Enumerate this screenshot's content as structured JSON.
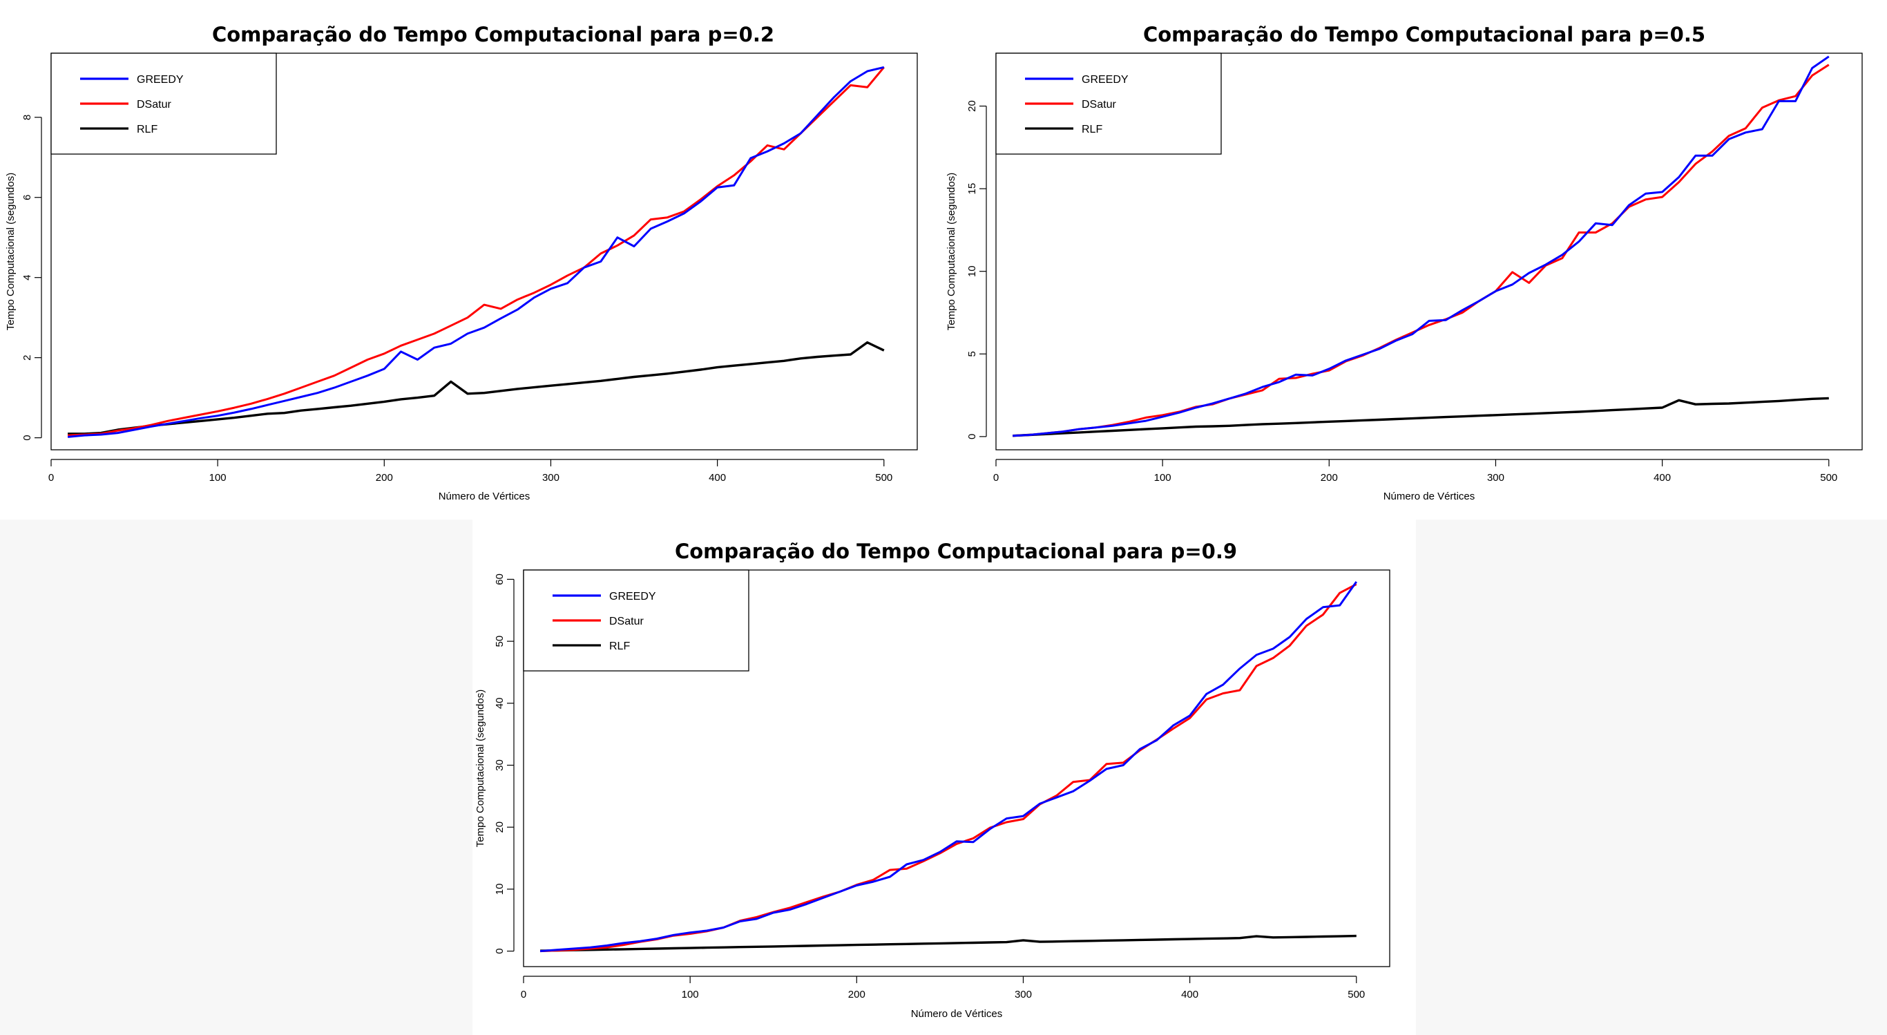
{
  "chart_data": [
    {
      "type": "line",
      "title": "Comparação do Tempo Computacional para p=0.2",
      "xlabel": "Número de Vértices",
      "ylabel": "Tempo Computacional (segundos)",
      "xlim": [
        0,
        520
      ],
      "ylim": [
        -0.3,
        9.6
      ],
      "xticks": [
        0,
        100,
        200,
        300,
        400,
        500
      ],
      "yticks": [
        0,
        2,
        4,
        6,
        8
      ],
      "legend_position": "top-left",
      "x": [
        10,
        20,
        30,
        40,
        50,
        60,
        70,
        80,
        90,
        100,
        110,
        120,
        130,
        140,
        150,
        160,
        170,
        180,
        190,
        200,
        210,
        220,
        230,
        240,
        250,
        260,
        270,
        280,
        290,
        300,
        310,
        320,
        330,
        340,
        350,
        360,
        370,
        380,
        390,
        400,
        410,
        420,
        430,
        440,
        450,
        460,
        470,
        480,
        490,
        500
      ],
      "series": [
        {
          "name": "GREEDY",
          "color": "#0000ff",
          "values": [
            0.02,
            0.06,
            0.08,
            0.12,
            0.2,
            0.28,
            0.35,
            0.42,
            0.49,
            0.55,
            0.63,
            0.72,
            0.82,
            0.92,
            1.02,
            1.12,
            1.25,
            1.4,
            1.55,
            1.72,
            2.15,
            1.95,
            2.25,
            2.35,
            2.6,
            2.75,
            2.98,
            3.2,
            3.5,
            3.72,
            3.86,
            4.25,
            4.4,
            5.0,
            4.78,
            5.22,
            5.4,
            5.6,
            5.9,
            6.25,
            6.3,
            6.98,
            7.15,
            7.35,
            7.6,
            8.05,
            8.5,
            8.9,
            9.15,
            9.25
          ]
        },
        {
          "name": "DSatur",
          "color": "#ff0000",
          "values": [
            0.06,
            0.08,
            0.1,
            0.18,
            0.24,
            0.32,
            0.42,
            0.5,
            0.58,
            0.66,
            0.75,
            0.85,
            0.97,
            1.1,
            1.25,
            1.4,
            1.55,
            1.75,
            1.95,
            2.1,
            2.3,
            2.45,
            2.6,
            2.8,
            3.0,
            3.32,
            3.22,
            3.45,
            3.62,
            3.82,
            4.05,
            4.25,
            4.6,
            4.8,
            5.05,
            5.45,
            5.5,
            5.65,
            5.95,
            6.28,
            6.55,
            6.9,
            7.3,
            7.2,
            7.6,
            8.0,
            8.4,
            8.8,
            8.75,
            9.25
          ]
        },
        {
          "name": "RLF",
          "color": "#000000",
          "values": [
            0.1,
            0.1,
            0.12,
            0.2,
            0.25,
            0.3,
            0.34,
            0.38,
            0.42,
            0.46,
            0.5,
            0.55,
            0.6,
            0.62,
            0.68,
            0.72,
            0.76,
            0.8,
            0.85,
            0.9,
            0.96,
            1.0,
            1.05,
            1.4,
            1.1,
            1.12,
            1.17,
            1.22,
            1.26,
            1.3,
            1.34,
            1.38,
            1.42,
            1.47,
            1.52,
            1.56,
            1.6,
            1.65,
            1.7,
            1.76,
            1.8,
            1.84,
            1.88,
            1.92,
            1.98,
            2.02,
            2.05,
            2.08,
            2.38,
            2.18
          ]
        }
      ]
    },
    {
      "type": "line",
      "title": "Comparação do Tempo Computacional para p=0.5",
      "xlabel": "Número de Vértices",
      "ylabel": "Tempo Computacional (segundos)",
      "xlim": [
        0,
        520
      ],
      "ylim": [
        -0.8,
        23.2
      ],
      "xticks": [
        0,
        100,
        200,
        300,
        400,
        500
      ],
      "yticks": [
        0,
        5,
        10,
        15,
        20
      ],
      "legend_position": "top-left",
      "x": [
        10,
        20,
        30,
        40,
        50,
        60,
        70,
        80,
        90,
        100,
        110,
        120,
        130,
        140,
        150,
        160,
        170,
        180,
        190,
        200,
        210,
        220,
        230,
        240,
        250,
        260,
        270,
        280,
        290,
        300,
        310,
        320,
        330,
        340,
        350,
        360,
        370,
        380,
        390,
        400,
        410,
        420,
        430,
        440,
        450,
        460,
        470,
        480,
        490,
        500
      ],
      "series": [
        {
          "name": "GREEDY",
          "color": "#0000ff",
          "values": [
            0.05,
            0.1,
            0.2,
            0.3,
            0.45,
            0.55,
            0.65,
            0.8,
            0.95,
            1.2,
            1.45,
            1.75,
            2.0,
            2.3,
            2.6,
            3.0,
            3.3,
            3.75,
            3.7,
            4.1,
            4.6,
            4.95,
            5.3,
            5.8,
            6.2,
            7.0,
            7.05,
            7.65,
            8.2,
            8.8,
            9.2,
            9.9,
            10.4,
            11.0,
            11.8,
            12.9,
            12.8,
            14.0,
            14.7,
            14.8,
            15.7,
            17.0,
            17.0,
            18.0,
            18.4,
            18.6,
            20.3,
            20.3,
            22.3,
            23.0
          ]
        },
        {
          "name": "DSatur",
          "color": "#ff0000",
          "values": [
            0.05,
            0.1,
            0.2,
            0.3,
            0.45,
            0.55,
            0.7,
            0.9,
            1.15,
            1.3,
            1.5,
            1.8,
            1.95,
            2.3,
            2.55,
            2.8,
            3.5,
            3.55,
            3.8,
            4.0,
            4.55,
            4.9,
            5.35,
            5.85,
            6.3,
            6.75,
            7.1,
            7.5,
            8.2,
            8.8,
            9.95,
            9.3,
            10.35,
            10.8,
            12.35,
            12.35,
            12.9,
            13.9,
            14.35,
            14.5,
            15.4,
            16.5,
            17.25,
            18.2,
            18.65,
            19.9,
            20.35,
            20.6,
            21.85,
            22.5
          ]
        },
        {
          "name": "RLF",
          "color": "#000000",
          "values": [
            0.05,
            0.1,
            0.15,
            0.2,
            0.25,
            0.3,
            0.35,
            0.4,
            0.45,
            0.5,
            0.55,
            0.6,
            0.62,
            0.65,
            0.7,
            0.75,
            0.78,
            0.82,
            0.86,
            0.9,
            0.94,
            0.98,
            1.02,
            1.06,
            1.1,
            1.14,
            1.18,
            1.22,
            1.26,
            1.3,
            1.34,
            1.38,
            1.42,
            1.46,
            1.5,
            1.55,
            1.6,
            1.65,
            1.7,
            1.75,
            2.2,
            1.95,
            1.98,
            2.0,
            2.05,
            2.1,
            2.15,
            2.22,
            2.28,
            2.32
          ]
        }
      ]
    },
    {
      "type": "line",
      "title": "Comparação do Tempo Computacional para p=0.9",
      "xlabel": "Número de Vértices",
      "ylabel": "Tempo Computacional (segundos)",
      "xlim": [
        0,
        520
      ],
      "ylim": [
        -2.5,
        61.5
      ],
      "xticks": [
        0,
        100,
        200,
        300,
        400,
        500
      ],
      "yticks": [
        0,
        10,
        20,
        30,
        40,
        50,
        60
      ],
      "legend_position": "top-left",
      "x": [
        10,
        20,
        30,
        40,
        50,
        60,
        70,
        80,
        90,
        100,
        110,
        120,
        130,
        140,
        150,
        160,
        170,
        180,
        190,
        200,
        210,
        220,
        230,
        240,
        250,
        260,
        270,
        280,
        290,
        300,
        310,
        320,
        330,
        340,
        350,
        360,
        370,
        380,
        390,
        400,
        410,
        420,
        430,
        440,
        450,
        460,
        470,
        480,
        490,
        500
      ],
      "series": [
        {
          "name": "GREEDY",
          "color": "#0000ff",
          "values": [
            0.0,
            0.2,
            0.4,
            0.6,
            0.9,
            1.3,
            1.6,
            2.0,
            2.6,
            3.0,
            3.3,
            3.8,
            4.8,
            5.2,
            6.2,
            6.7,
            7.6,
            8.6,
            9.6,
            10.6,
            11.2,
            12.0,
            14.0,
            14.7,
            16.0,
            17.7,
            17.6,
            19.7,
            21.4,
            21.8,
            23.8,
            24.8,
            25.8,
            27.5,
            29.4,
            30.0,
            32.6,
            34.0,
            36.4,
            38.0,
            41.5,
            43.0,
            45.6,
            47.8,
            48.8,
            50.7,
            53.6,
            55.5,
            55.8,
            59.6
          ]
        },
        {
          "name": "DSatur",
          "color": "#ff0000",
          "values": [
            0.0,
            0.1,
            0.2,
            0.4,
            0.6,
            1.0,
            1.5,
            1.9,
            2.5,
            2.8,
            3.2,
            3.8,
            4.9,
            5.5,
            6.3,
            7.0,
            7.9,
            8.8,
            9.6,
            10.7,
            11.5,
            13.1,
            13.3,
            14.5,
            15.8,
            17.3,
            18.2,
            19.9,
            20.8,
            21.3,
            23.7,
            25.1,
            27.3,
            27.6,
            30.2,
            30.4,
            32.4,
            34.1,
            35.9,
            37.6,
            40.6,
            41.6,
            42.1,
            46.0,
            47.3,
            49.3,
            52.5,
            54.3,
            57.8,
            59.2
          ]
        },
        {
          "name": "RLF",
          "color": "#000000",
          "values": [
            0.05,
            0.1,
            0.15,
            0.2,
            0.25,
            0.3,
            0.35,
            0.4,
            0.45,
            0.5,
            0.55,
            0.6,
            0.65,
            0.7,
            0.75,
            0.8,
            0.85,
            0.9,
            0.95,
            1.0,
            1.05,
            1.1,
            1.15,
            1.2,
            1.25,
            1.3,
            1.35,
            1.4,
            1.45,
            1.75,
            1.5,
            1.55,
            1.6,
            1.65,
            1.7,
            1.75,
            1.8,
            1.85,
            1.9,
            1.95,
            2.0,
            2.05,
            2.1,
            2.4,
            2.2,
            2.25,
            2.3,
            2.35,
            2.4,
            2.45
          ]
        }
      ]
    }
  ]
}
